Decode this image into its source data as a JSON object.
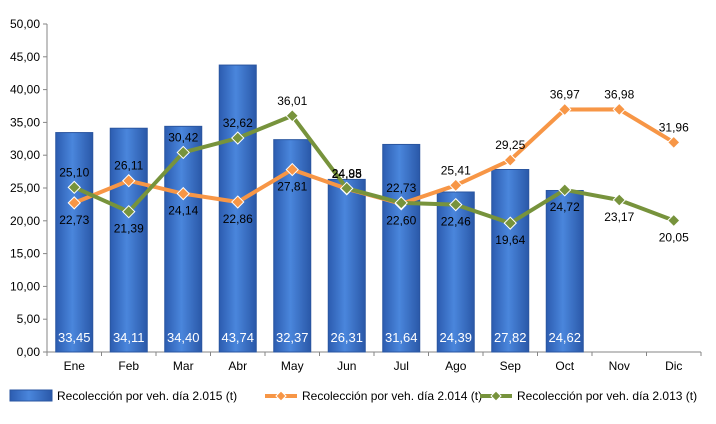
{
  "chart_data": {
    "type": "bar",
    "title": "",
    "xlabel": "",
    "ylabel": "",
    "ylim": [
      0,
      50
    ],
    "yticks": [
      "0,00",
      "5,00",
      "10,00",
      "15,00",
      "20,00",
      "25,00",
      "30,00",
      "35,00",
      "40,00",
      "45,00",
      "50,00"
    ],
    "grid": false,
    "legend_position": "bottom",
    "categories": [
      "Ene",
      "Feb",
      "Mar",
      "Abr",
      "May",
      "Jun",
      "Jul",
      "Ago",
      "Sep",
      "Oct",
      "Nov",
      "Dic"
    ],
    "series": [
      {
        "name": "Recolección por veh. día 2.015 (t)",
        "type": "bar",
        "color": "#3a6fc8",
        "values": [
          33.45,
          34.11,
          34.4,
          43.74,
          32.37,
          26.31,
          31.64,
          24.39,
          27.82,
          24.62,
          null,
          null
        ],
        "labels": [
          "33,45",
          "34,11",
          "34,40",
          "43,74",
          "32,37",
          "26,31",
          "31,64",
          "24,39",
          "27,82",
          "24,62",
          "",
          ""
        ]
      },
      {
        "name": "Recolección por veh. día 2.014 (t)",
        "type": "line",
        "color": "#f79646",
        "values": [
          22.73,
          26.11,
          24.14,
          22.86,
          27.81,
          24.88,
          22.6,
          25.41,
          29.25,
          36.97,
          36.98,
          31.96
        ],
        "labels": [
          "22,73",
          "26,11",
          "24,14",
          "22,86",
          "27,81",
          "24,88",
          "22,60",
          "25,41",
          "29,25",
          "36,97",
          "36,98",
          "31,96"
        ]
      },
      {
        "name": "Recolección por veh. día 2.013 (t)",
        "type": "line",
        "color": "#77933c",
        "values": [
          25.1,
          21.39,
          30.42,
          32.62,
          36.01,
          24.95,
          22.73,
          22.46,
          19.64,
          24.72,
          23.17,
          20.05
        ],
        "labels": [
          "25,10",
          "21,39",
          "30,42",
          "32,62",
          "36,01",
          "24,95",
          "22,73",
          "22,46",
          "19,64",
          "24,72",
          "23,17",
          "20,05"
        ]
      }
    ]
  }
}
